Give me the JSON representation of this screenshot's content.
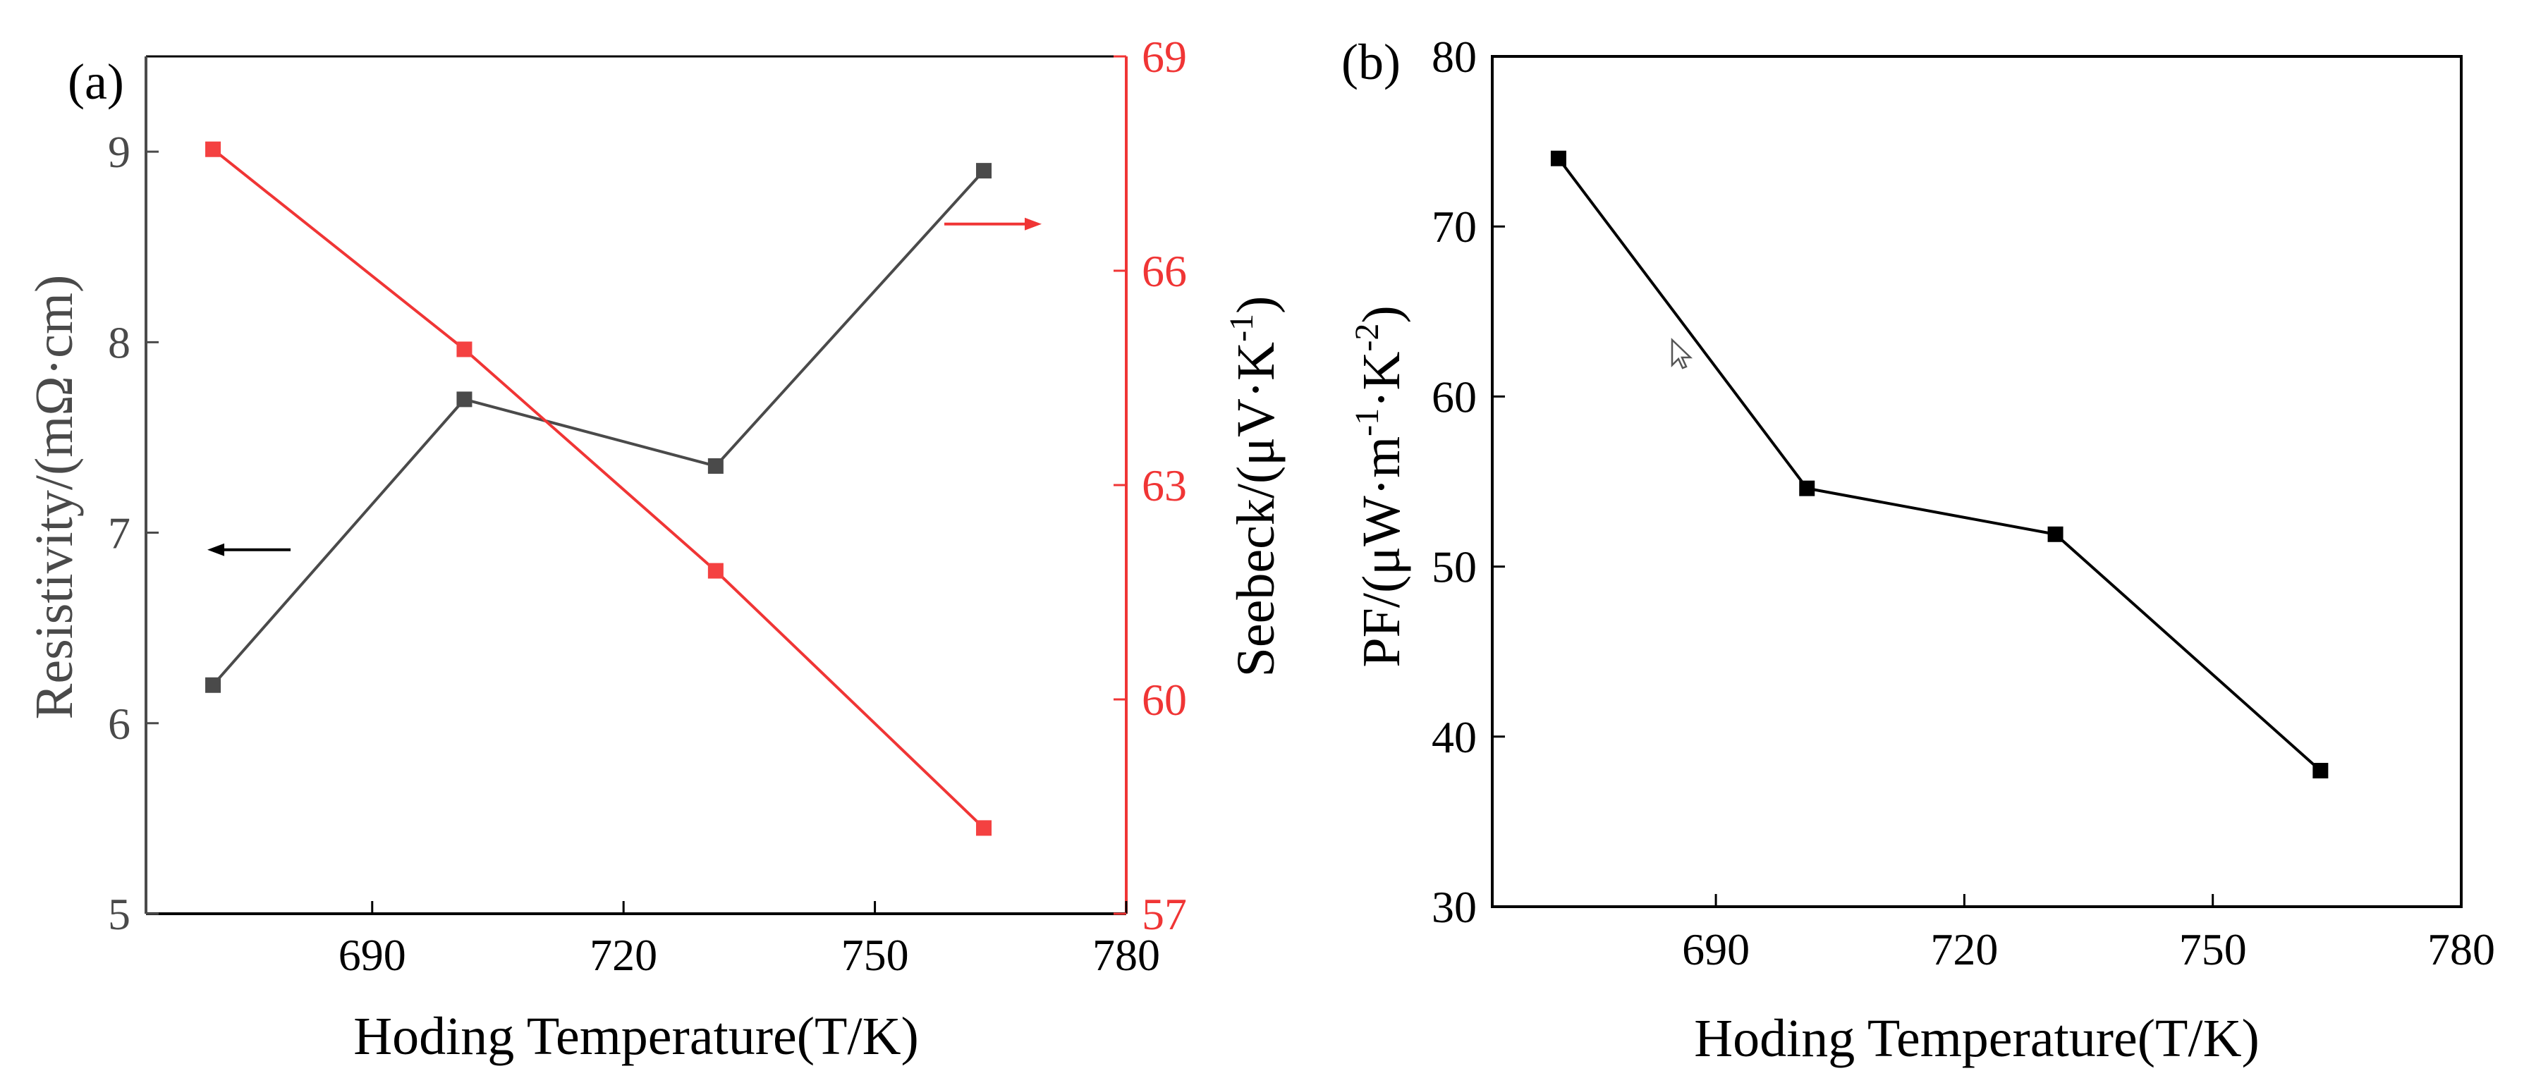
{
  "colors": {
    "black": "#000000",
    "gray": "#4a4a4a",
    "red": "#f03535",
    "marker_gray": "#4a4a4a",
    "marker_red": "#f44141"
  },
  "chart_data": [
    {
      "type": "line",
      "panel_label": "(a)",
      "xlabel": "Hoding Temperature(T/K)",
      "xlim": [
        663,
        780
      ],
      "xticks": [
        690,
        720,
        750,
        780
      ],
      "xtick_labels": [
        "690",
        "720",
        "750",
        "780"
      ],
      "y_left": {
        "label": "Resistivity/(mΩ·cm)",
        "lim": [
          5,
          9.5
        ],
        "ticks": [
          5,
          6,
          7,
          8,
          9
        ],
        "tick_labels": [
          "5",
          "6",
          "7",
          "8",
          "9"
        ]
      },
      "y_right": {
        "label_main": "Seebeck/(μV·K",
        "label_sup": "-1",
        "label_end": ")",
        "lim": [
          57,
          69
        ],
        "ticks": [
          57,
          60,
          63,
          66,
          69
        ],
        "tick_labels": [
          "57",
          "60",
          "63",
          "66",
          "69"
        ]
      },
      "series": [
        {
          "name": "Resistivity",
          "axis": "left",
          "x": [
            671,
            701,
            731,
            763
          ],
          "values": [
            6.2,
            7.7,
            7.35,
            8.9
          ]
        },
        {
          "name": "Seebeck",
          "axis": "right",
          "x": [
            671,
            701,
            731,
            763
          ],
          "values": [
            67.7,
            64.9,
            61.8,
            58.2
          ]
        }
      ],
      "annotations": [
        {
          "type": "arrow",
          "direction": "left",
          "series": "Resistivity"
        },
        {
          "type": "arrow",
          "direction": "right",
          "series": "Seebeck"
        }
      ]
    },
    {
      "type": "line",
      "panel_label": "(b)",
      "xlabel": "Hoding Temperature(T/K)",
      "xlim": [
        663,
        780
      ],
      "xticks": [
        690,
        720,
        750,
        780
      ],
      "xtick_labels": [
        "690",
        "720",
        "750",
        "780"
      ],
      "y": {
        "label_parts": [
          "PF/(μW·m",
          "-1",
          "·K",
          "-2",
          ")"
        ],
        "lim": [
          30,
          80
        ],
        "ticks": [
          30,
          40,
          50,
          60,
          70,
          80
        ],
        "tick_labels": [
          "30",
          "40",
          "50",
          "60",
          "70",
          "80"
        ]
      },
      "series": [
        {
          "name": "PF",
          "x": [
            671,
            701,
            731,
            763
          ],
          "values": [
            74,
            54.6,
            51.9,
            38
          ]
        }
      ]
    }
  ],
  "overlay": {
    "cursor_icon": "mouse-pointer-icon"
  }
}
